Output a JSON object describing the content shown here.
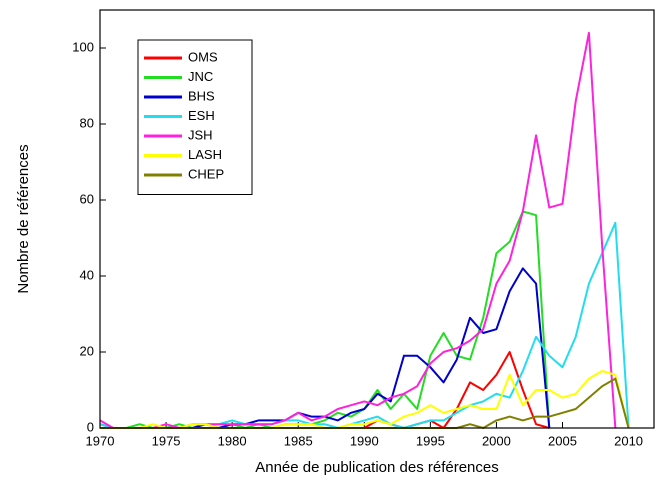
{
  "chart_data": {
    "type": "line",
    "xlabel": "Année de publication des références",
    "ylabel": "Nombre de références",
    "x": [
      1970,
      1971,
      1972,
      1973,
      1974,
      1975,
      1976,
      1977,
      1978,
      1979,
      1980,
      1981,
      1982,
      1983,
      1984,
      1985,
      1986,
      1987,
      1988,
      1989,
      1990,
      1991,
      1992,
      1993,
      1994,
      1995,
      1996,
      1997,
      1998,
      1999,
      2000,
      2001,
      2002,
      2003,
      2004,
      2005,
      2006,
      2007,
      2008,
      2009,
      2010
    ],
    "series": [
      {
        "name": "OMS",
        "color": "#ff0000",
        "values": [
          0,
          0,
          0,
          0,
          0,
          0,
          0,
          0,
          0,
          0,
          0,
          0,
          0,
          0,
          0,
          0,
          0,
          0,
          0,
          0,
          0,
          2,
          1,
          0,
          1,
          2,
          0,
          5,
          12,
          10,
          14,
          20,
          10,
          1,
          0,
          null,
          null,
          null,
          null,
          null,
          null
        ]
      },
      {
        "name": "JNC",
        "color": "#22dd22",
        "values": [
          0,
          0,
          0,
          1,
          0,
          0,
          1,
          0,
          1,
          0,
          1,
          0,
          1,
          0,
          1,
          1,
          1,
          2,
          4,
          3,
          5,
          10,
          5,
          9,
          5,
          19,
          25,
          19,
          18,
          29,
          46,
          49,
          57,
          56,
          0,
          null,
          null,
          null,
          null,
          null,
          null
        ]
      },
      {
        "name": "BHS",
        "color": "#0000cc",
        "values": [
          1,
          0,
          0,
          0,
          0,
          0,
          0,
          0,
          1,
          0,
          1,
          1,
          2,
          2,
          2,
          4,
          3,
          3,
          2,
          4,
          5,
          9,
          7,
          19,
          19,
          16,
          12,
          18,
          29,
          25,
          26,
          36,
          42,
          38,
          0,
          null,
          null,
          null,
          null,
          null,
          null
        ]
      },
      {
        "name": "ESH",
        "color": "#22ddee",
        "values": [
          1,
          0,
          0,
          0,
          0,
          0,
          0,
          1,
          1,
          1,
          2,
          1,
          1,
          1,
          2,
          2,
          1,
          1,
          0,
          1,
          2,
          3,
          1,
          0,
          1,
          2,
          2,
          4,
          6,
          7,
          9,
          8,
          15,
          24,
          19,
          16,
          24,
          38,
          46,
          54,
          0
        ]
      },
      {
        "name": "JSH",
        "color": "#ff22dd",
        "values": [
          2,
          0,
          0,
          0,
          0,
          1,
          0,
          1,
          1,
          1,
          1,
          1,
          1,
          1,
          2,
          4,
          2,
          3,
          5,
          6,
          7,
          6,
          8,
          9,
          11,
          17,
          20,
          21,
          23,
          26,
          38,
          44,
          57,
          77,
          58,
          59,
          86,
          104,
          48,
          0,
          null
        ]
      },
      {
        "name": "LASH",
        "color": "#ffff00",
        "values": [
          0,
          0,
          0,
          0,
          1,
          0,
          0,
          1,
          1,
          0,
          0,
          0,
          0,
          0,
          1,
          1,
          1,
          0,
          0,
          1,
          1,
          2,
          1,
          3,
          4,
          6,
          4,
          5,
          6,
          5,
          5,
          14,
          6,
          10,
          10,
          8,
          9,
          13,
          15,
          14,
          0
        ]
      },
      {
        "name": "CHEP",
        "color": "#808000",
        "values": [
          0,
          0,
          0,
          0,
          0,
          0,
          0,
          0,
          0,
          0,
          0,
          0,
          0,
          0,
          0,
          0,
          0,
          0,
          0,
          0,
          0,
          0,
          0,
          0,
          0,
          0,
          0,
          0,
          1,
          0,
          2,
          3,
          2,
          3,
          3,
          4,
          5,
          8,
          11,
          13,
          0
        ]
      }
    ],
    "xlim": [
      1970,
      2012
    ],
    "xticks": [
      1970,
      1975,
      1980,
      1985,
      1990,
      1995,
      2000,
      2005,
      2010
    ],
    "ylim": [
      0,
      110
    ],
    "yticks": [
      0,
      20,
      40,
      60,
      80,
      100
    ],
    "legend": "upper left"
  }
}
